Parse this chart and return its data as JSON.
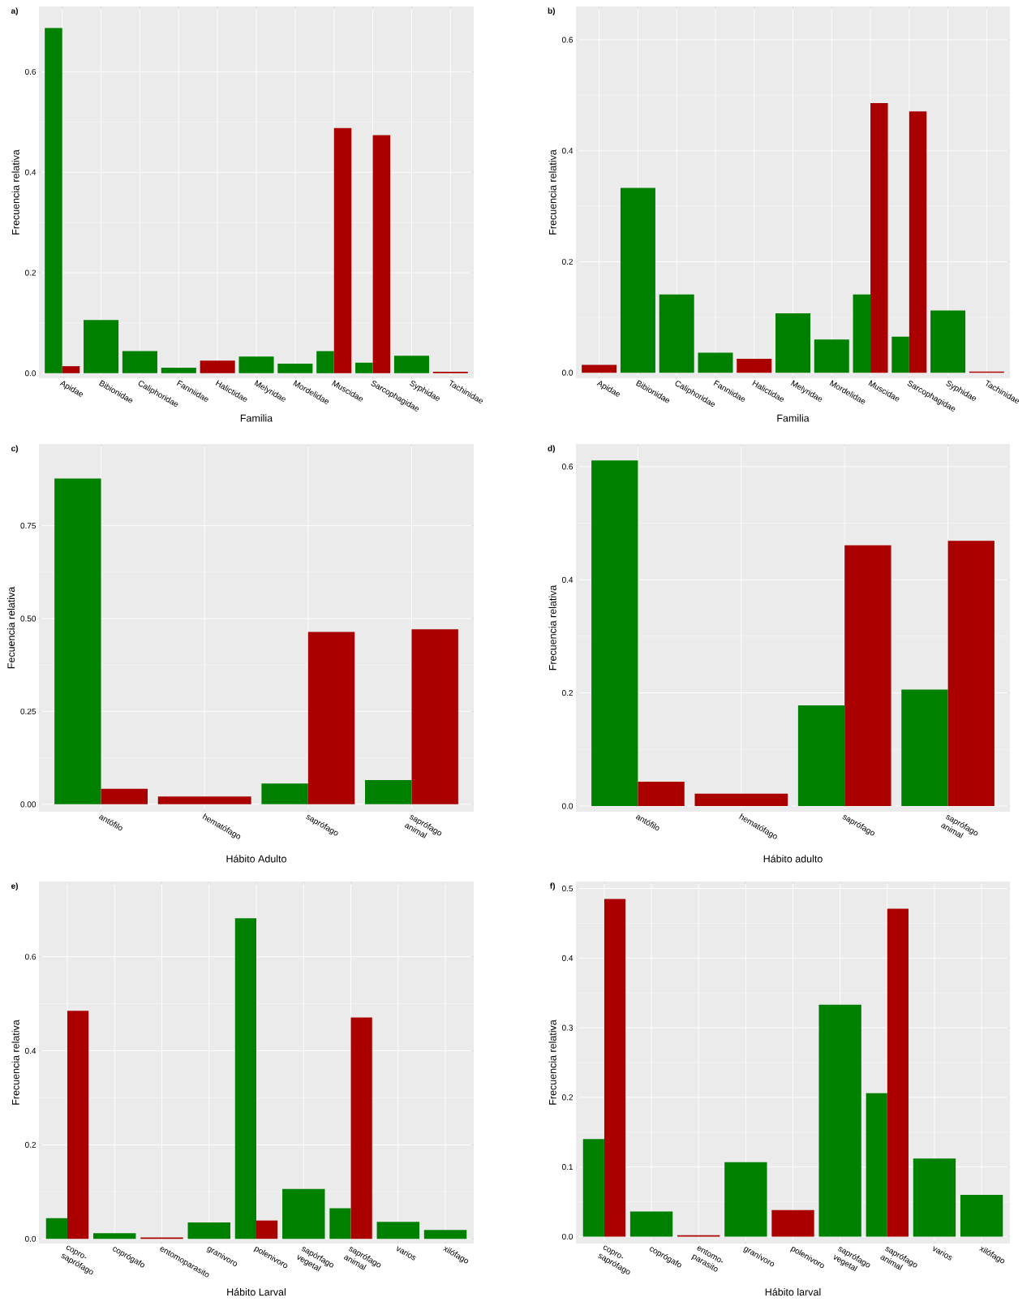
{
  "chart_data": [
    {
      "type": "bar",
      "title": "a)",
      "xlabel": "Familia",
      "ylabel": "Frecuencia relativa",
      "categories": [
        "Apidae",
        "Bibionidae",
        "Caliphoridae",
        "Fanniidae",
        "Halictidae",
        "Melyridae",
        "Mordelidae",
        "Muscidae",
        "Sarcophagidae",
        "Syphidae",
        "Tachinidae"
      ],
      "series": [
        {
          "color": "#008000",
          "values": [
            0.687,
            0.106,
            0.044,
            0.011,
            null,
            0.033,
            0.019,
            0.044,
            0.021,
            0.035,
            null
          ]
        },
        {
          "color": "#aa0000",
          "values": [
            0.014,
            null,
            null,
            null,
            0.025,
            null,
            null,
            0.488,
            0.474,
            null,
            0.003
          ]
        }
      ],
      "ylim": [
        -0.01,
        0.73
      ],
      "yticks": [
        {
          "value": 0,
          "label": "0.0"
        },
        {
          "value": 0.2,
          "label": "0.2"
        },
        {
          "value": 0.4,
          "label": "0.4"
        },
        {
          "value": 0.6,
          "label": "0.6"
        }
      ],
      "grid": true
    },
    {
      "type": "bar",
      "title": "b)",
      "xlabel": "Familia",
      "ylabel": "Frecuencia relativa",
      "categories": [
        "Apidae",
        "Bibionidae",
        "Caliphoridae",
        "Fanniidae",
        "Halictidae",
        "Melyridae",
        "Mordelidae",
        "Muscidae",
        "Sarcophagidae",
        "Syphidae",
        "Tachinidae"
      ],
      "series": [
        {
          "color": "#008000",
          "values": [
            null,
            0.333,
            0.141,
            0.036,
            null,
            0.107,
            0.06,
            0.141,
            0.065,
            0.112,
            null
          ]
        },
        {
          "color": "#aa0000",
          "values": [
            0.014,
            null,
            null,
            null,
            0.025,
            null,
            null,
            0.486,
            0.471,
            null,
            0.002
          ]
        }
      ],
      "ylim": [
        -0.01,
        0.66
      ],
      "yticks": [
        {
          "value": 0,
          "label": "0.0"
        },
        {
          "value": 0.2,
          "label": "0.2"
        },
        {
          "value": 0.4,
          "label": "0.4"
        },
        {
          "value": 0.6,
          "label": "0.6"
        }
      ],
      "grid": true
    },
    {
      "type": "bar",
      "title": "c)",
      "xlabel": "Hábito Adulto",
      "ylabel": "Fecuencia relativa",
      "categories": [
        "antófilo",
        "hematófago",
        "saprófago",
        "saprófago animal"
      ],
      "series": [
        {
          "color": "#008000",
          "values": [
            0.877,
            null,
            0.056,
            0.065
          ]
        },
        {
          "color": "#aa0000",
          "values": [
            0.042,
            0.021,
            0.464,
            0.471
          ]
        }
      ],
      "ylim": [
        -0.02,
        0.97
      ],
      "yticks": [
        {
          "value": 0,
          "label": "0.00"
        },
        {
          "value": 0.25,
          "label": "0.25"
        },
        {
          "value": 0.5,
          "label": "0.50"
        },
        {
          "value": 0.75,
          "label": "0.75"
        }
      ],
      "grid": true
    },
    {
      "type": "bar",
      "title": "d)",
      "xlabel": "Hábito adulto",
      "ylabel": "Frecuencia relativa",
      "categories": [
        "antófilo",
        "hematófago",
        "saprófago",
        "saprófago animal"
      ],
      "series": [
        {
          "color": "#008000",
          "values": [
            0.611,
            null,
            0.178,
            0.206
          ]
        },
        {
          "color": "#aa0000",
          "values": [
            0.043,
            0.022,
            0.461,
            0.469
          ]
        }
      ],
      "ylim": [
        -0.01,
        0.64
      ],
      "yticks": [
        {
          "value": 0,
          "label": "0.0"
        },
        {
          "value": 0.2,
          "label": "0.2"
        },
        {
          "value": 0.4,
          "label": "0.4"
        },
        {
          "value": 0.6,
          "label": "0.6"
        }
      ],
      "grid": true
    },
    {
      "type": "bar",
      "title": "e)",
      "xlabel": "Hábito Larval",
      "ylabel": "Frecuencia relativa",
      "categories": [
        "copro-saprófago",
        "coprógafo",
        "entomoparasito",
        "granivoro",
        "polenivoro",
        "sapórfago vegetal",
        "saprófago animal",
        "varios",
        "xilófago"
      ],
      "series": [
        {
          "color": "#008000",
          "values": [
            0.044,
            0.012,
            null,
            0.035,
            0.682,
            0.106,
            0.065,
            0.036,
            0.019
          ]
        },
        {
          "color": "#aa0000",
          "values": [
            0.485,
            null,
            0.003,
            null,
            0.039,
            null,
            0.471,
            null,
            null
          ]
        }
      ],
      "ylim": [
        -0.01,
        0.76
      ],
      "yticks": [
        {
          "value": 0,
          "label": "0.0"
        },
        {
          "value": 0.2,
          "label": "0.2"
        },
        {
          "value": 0.4,
          "label": "0.4"
        },
        {
          "value": 0.6,
          "label": "0.6"
        }
      ],
      "grid": true
    },
    {
      "type": "bar",
      "title": "f)",
      "xlabel": "Hábito larval",
      "ylabel": "Frecuencia relativa",
      "categories": [
        "copro-saprófago",
        "coprógafo",
        "entomo-parasito",
        "granívoro",
        "polenivoro",
        "saprófago vegetal",
        "saprófago animal",
        "varios",
        "xilófago"
      ],
      "series": [
        {
          "color": "#008000",
          "values": [
            0.14,
            0.036,
            null,
            0.107,
            null,
            0.333,
            0.206,
            0.112,
            0.06
          ]
        },
        {
          "color": "#aa0000",
          "values": [
            0.485,
            null,
            0.002,
            null,
            0.038,
            null,
            0.471,
            null,
            null
          ]
        }
      ],
      "ylim": [
        -0.01,
        0.51
      ],
      "yticks": [
        {
          "value": 0,
          "label": "0.0"
        },
        {
          "value": 0.1,
          "label": "0.1"
        },
        {
          "value": 0.2,
          "label": "0.2"
        },
        {
          "value": 0.3,
          "label": "0.3"
        },
        {
          "value": 0.4,
          "label": "0.4"
        },
        {
          "value": 0.5,
          "label": "0.5"
        }
      ],
      "grid": true
    }
  ]
}
